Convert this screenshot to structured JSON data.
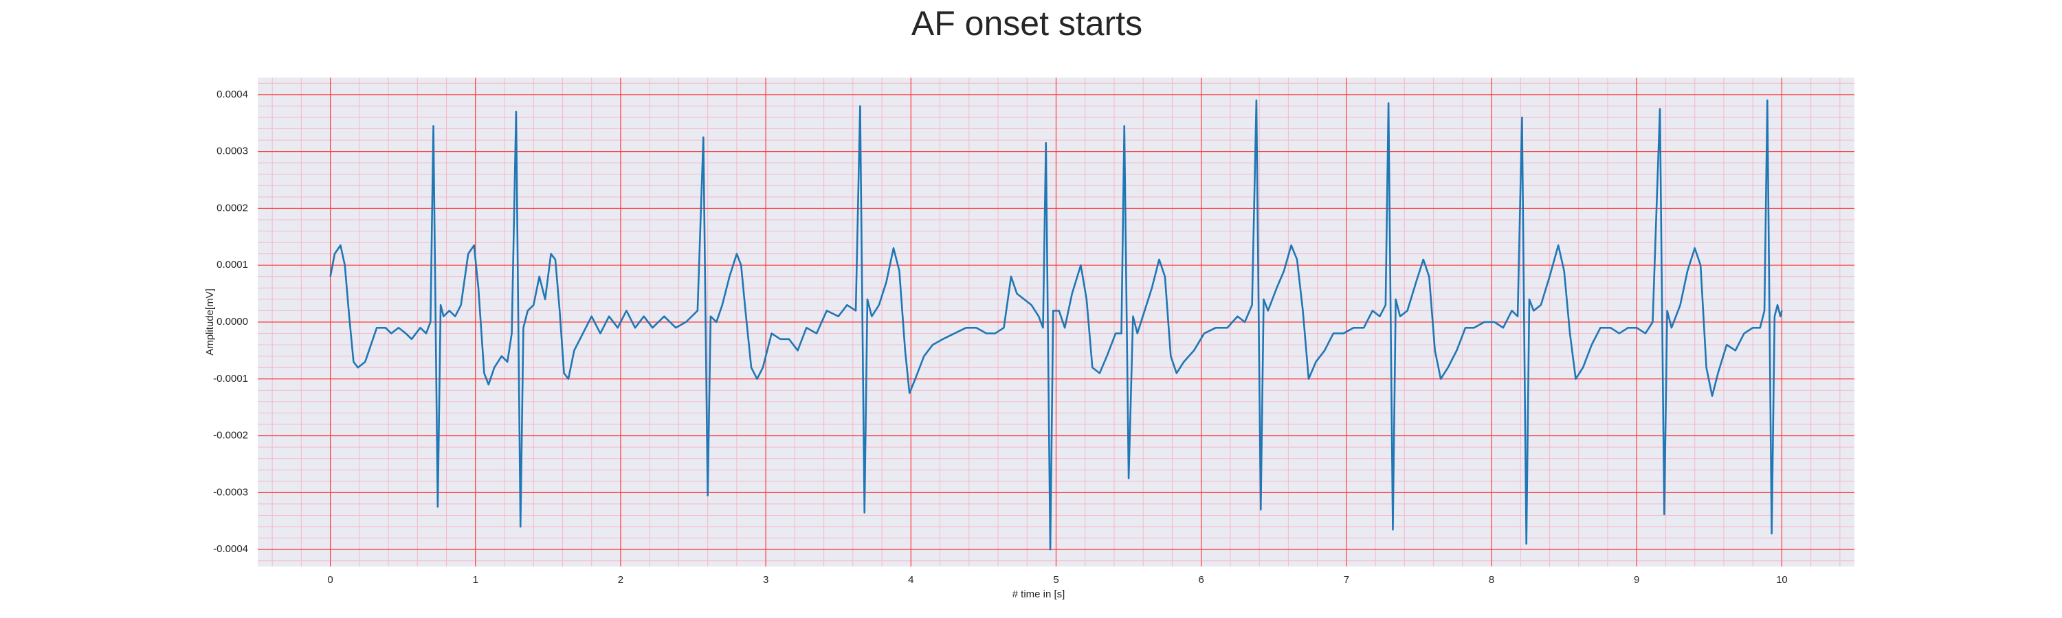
{
  "chart_data": {
    "type": "line",
    "title": "AF onset starts",
    "xlabel": "# time in [s]",
    "ylabel": "Amplitude[mV]",
    "x": [
      0,
      0.03,
      0.07,
      0.1,
      0.13,
      0.16,
      0.19,
      0.24,
      0.28,
      0.32,
      0.38,
      0.42,
      0.47,
      0.52,
      0.56,
      0.62,
      0.66,
      0.69,
      0.71,
      0.74,
      0.76,
      0.78,
      0.82,
      0.86,
      0.9,
      0.95,
      0.99,
      1.02,
      1.06,
      1.09,
      1.13,
      1.18,
      1.22,
      1.25,
      1.28,
      1.31,
      1.33,
      1.36,
      1.4,
      1.44,
      1.48,
      1.52,
      1.55,
      1.58,
      1.61,
      1.64,
      1.68,
      1.74,
      1.8,
      1.86,
      1.92,
      1.98,
      2.04,
      2.1,
      2.16,
      2.22,
      2.3,
      2.38,
      2.45,
      2.53,
      2.57,
      2.6,
      2.62,
      2.66,
      2.7,
      2.75,
      2.8,
      2.83,
      2.86,
      2.9,
      2.94,
      2.98,
      3.04,
      3.1,
      3.16,
      3.22,
      3.28,
      3.35,
      3.42,
      3.5,
      3.56,
      3.62,
      3.65,
      3.68,
      3.7,
      3.73,
      3.78,
      3.83,
      3.88,
      3.92,
      3.96,
      3.99,
      4.03,
      4.09,
      4.15,
      4.22,
      4.3,
      4.38,
      4.45,
      4.52,
      4.58,
      4.64,
      4.69,
      4.73,
      4.78,
      4.83,
      4.88,
      4.91,
      4.93,
      4.96,
      4.98,
      5.02,
      5.06,
      5.11,
      5.17,
      5.21,
      5.25,
      5.3,
      5.35,
      5.41,
      5.45,
      5.47,
      5.5,
      5.53,
      5.56,
      5.61,
      5.66,
      5.71,
      5.75,
      5.79,
      5.83,
      5.88,
      5.95,
      6.02,
      6.1,
      6.18,
      6.25,
      6.3,
      6.35,
      6.38,
      6.41,
      6.43,
      6.46,
      6.52,
      6.57,
      6.62,
      6.66,
      6.7,
      6.74,
      6.79,
      6.85,
      6.91,
      6.98,
      7.05,
      7.12,
      7.18,
      7.23,
      7.27,
      7.29,
      7.32,
      7.34,
      7.37,
      7.42,
      7.48,
      7.53,
      7.57,
      7.61,
      7.65,
      7.7,
      7.76,
      7.82,
      7.88,
      7.95,
      8.02,
      8.08,
      8.14,
      8.18,
      8.21,
      8.24,
      8.26,
      8.29,
      8.34,
      8.4,
      8.46,
      8.5,
      8.54,
      8.58,
      8.63,
      8.69,
      8.75,
      8.82,
      8.88,
      8.94,
      9.0,
      9.06,
      9.11,
      9.16,
      9.19,
      9.21,
      9.24,
      9.3,
      9.35,
      9.4,
      9.44,
      9.48,
      9.52,
      9.56,
      9.62,
      9.68,
      9.74,
      9.8,
      9.85,
      9.88,
      9.9,
      9.93,
      9.95,
      9.97,
      9.99,
      10.0
    ],
    "series": [
      {
        "color": "#1f77b4",
        "values": [
          8e-05,
          0.00012,
          0.000135,
          0.0001,
          1e-05,
          -7e-05,
          -8e-05,
          -7e-05,
          -4e-05,
          -1e-05,
          -1e-05,
          -2e-05,
          -1e-05,
          -2e-05,
          -3e-05,
          -1e-05,
          -2e-05,
          0,
          0.000345,
          -0.000325,
          3e-05,
          1e-05,
          2e-05,
          1e-05,
          3e-05,
          0.00012,
          0.000135,
          6e-05,
          -9e-05,
          -0.00011,
          -8e-05,
          -6e-05,
          -7e-05,
          -2e-05,
          0.00037,
          -0.00036,
          -1e-05,
          2e-05,
          3e-05,
          8e-05,
          4e-05,
          0.00012,
          0.00011,
          2e-05,
          -9e-05,
          -0.0001,
          -5e-05,
          -2e-05,
          1e-05,
          -2e-05,
          1e-05,
          -1e-05,
          2e-05,
          -1e-05,
          1e-05,
          -1e-05,
          1e-05,
          -1e-05,
          0,
          2e-05,
          0.000325,
          -0.000305,
          1e-05,
          0,
          3e-05,
          8e-05,
          0.00012,
          0.0001,
          2e-05,
          -8e-05,
          -0.0001,
          -8e-05,
          -2e-05,
          -3e-05,
          -3e-05,
          -5e-05,
          -1e-05,
          -2e-05,
          2e-05,
          1e-05,
          3e-05,
          2e-05,
          0.00038,
          -0.000335,
          4e-05,
          1e-05,
          3e-05,
          7e-05,
          0.00013,
          9e-05,
          -5e-05,
          -0.000125,
          -0.0001,
          -6e-05,
          -4e-05,
          -3e-05,
          -2e-05,
          -1e-05,
          -1e-05,
          -2e-05,
          -2e-05,
          -1e-05,
          8e-05,
          5e-05,
          4e-05,
          3e-05,
          1e-05,
          -1e-05,
          0.000315,
          -0.0004,
          2e-05,
          2e-05,
          -1e-05,
          5e-05,
          0.0001,
          4e-05,
          -8e-05,
          -9e-05,
          -6e-05,
          -2e-05,
          -2e-05,
          0.000345,
          -0.000275,
          1e-05,
          -2e-05,
          2e-05,
          6e-05,
          0.00011,
          8e-05,
          -6e-05,
          -9e-05,
          -7e-05,
          -5e-05,
          -2e-05,
          -1e-05,
          -1e-05,
          1e-05,
          0,
          3e-05,
          0.00039,
          -0.00033,
          4e-05,
          2e-05,
          6e-05,
          9e-05,
          0.000135,
          0.00011,
          2e-05,
          -0.0001,
          -7e-05,
          -5e-05,
          -2e-05,
          -2e-05,
          -1e-05,
          -1e-05,
          2e-05,
          1e-05,
          3e-05,
          0.000385,
          -0.000365,
          4e-05,
          1e-05,
          2e-05,
          7e-05,
          0.00011,
          8e-05,
          -5e-05,
          -0.0001,
          -8e-05,
          -5e-05,
          -1e-05,
          -1e-05,
          0,
          0,
          -1e-05,
          2e-05,
          1e-05,
          0.00036,
          -0.00039,
          4e-05,
          2e-05,
          3e-05,
          8e-05,
          0.000135,
          9e-05,
          -2e-05,
          -0.0001,
          -8e-05,
          -4e-05,
          -1e-05,
          -1e-05,
          -2e-05,
          -1e-05,
          -1e-05,
          -2e-05,
          0,
          0.000375,
          -0.000338,
          2e-05,
          -1e-05,
          3e-05,
          9e-05,
          0.00013,
          0.0001,
          -8e-05,
          -0.00013,
          -9e-05,
          -4e-05,
          -5e-05,
          -2e-05,
          -1e-05,
          -1e-05,
          2e-05,
          0.00039,
          -0.000372,
          1e-05,
          3e-05,
          1e-05,
          2e-05
        ]
      }
    ],
    "xlim": [
      -0.5,
      10.5
    ],
    "xticks": [
      0,
      1,
      2,
      3,
      4,
      5,
      6,
      7,
      8,
      9,
      10
    ],
    "ylim": [
      -0.00043,
      0.00043
    ],
    "yticks": [
      {
        "value": -0.0004,
        "label": "-0.0004"
      },
      {
        "value": -0.0003,
        "label": "-0.0003"
      },
      {
        "value": -0.0002,
        "label": "-0.0002"
      },
      {
        "value": -0.0001,
        "label": "-0.0001"
      },
      {
        "value": 0,
        "label": "0.0000"
      },
      {
        "value": 0.0001,
        "label": "0.0001"
      },
      {
        "value": 0.0002,
        "label": "0.0002"
      },
      {
        "value": 0.0003,
        "label": "0.0003"
      },
      {
        "value": 0.0004,
        "label": "0.0004"
      }
    ],
    "grid": true,
    "grid_color": "#ff3b3b",
    "minor_grid_color": "#f5b8c8",
    "background": "#eaeaf2"
  }
}
